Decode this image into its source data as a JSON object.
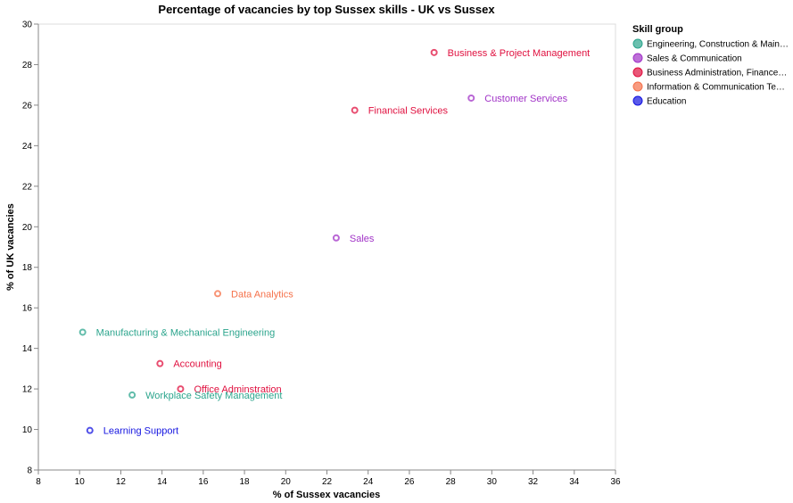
{
  "chart_data": {
    "type": "scatter",
    "title": "Percentage of vacancies by top Sussex skills - UK vs Sussex",
    "xlabel": "% of Sussex vacancies",
    "ylabel": "% of UK vacancies",
    "xlim": [
      8,
      36
    ],
    "ylim": [
      8,
      30
    ],
    "xticks": [
      8,
      10,
      12,
      14,
      16,
      18,
      20,
      22,
      24,
      26,
      28,
      30,
      32,
      34,
      36
    ],
    "yticks": [
      8,
      10,
      12,
      14,
      16,
      18,
      20,
      22,
      24,
      26,
      28,
      30
    ],
    "grid": false,
    "legend": {
      "title": "Skill group",
      "placement": "right",
      "groups": [
        {
          "key": "eng",
          "label": "Engineering, Construction & Main…",
          "color": "#2ca58d"
        },
        {
          "key": "sales",
          "label": "Sales & Communication",
          "color": "#a133c7"
        },
        {
          "key": "biz",
          "label": "Business Administration, Finance…",
          "color": "#e0103f"
        },
        {
          "key": "ict",
          "label": "Information & Communication Te…",
          "color": "#f5714a"
        },
        {
          "key": "edu",
          "label": "Education",
          "color": "#1414e0"
        }
      ]
    },
    "points": [
      {
        "label": "Business & Project Management",
        "x": 27.2,
        "y": 28.6,
        "group": "biz"
      },
      {
        "label": "Customer Services",
        "x": 29.0,
        "y": 26.35,
        "group": "sales"
      },
      {
        "label": "Financial Services",
        "x": 23.35,
        "y": 25.75,
        "group": "biz"
      },
      {
        "label": "Sales",
        "x": 22.45,
        "y": 19.45,
        "group": "sales"
      },
      {
        "label": "Data Analytics",
        "x": 16.7,
        "y": 16.7,
        "group": "ict"
      },
      {
        "label": "Manufacturing & Mechanical Engineering",
        "x": 10.15,
        "y": 14.8,
        "group": "eng"
      },
      {
        "label": "Accounting",
        "x": 13.9,
        "y": 13.25,
        "group": "biz"
      },
      {
        "label": "Office Adminstration",
        "x": 14.9,
        "y": 12.0,
        "group": "biz"
      },
      {
        "label": "Workplace Safety Management",
        "x": 12.55,
        "y": 11.7,
        "group": "eng"
      },
      {
        "label": "Learning Support",
        "x": 10.5,
        "y": 9.95,
        "group": "edu"
      }
    ]
  }
}
